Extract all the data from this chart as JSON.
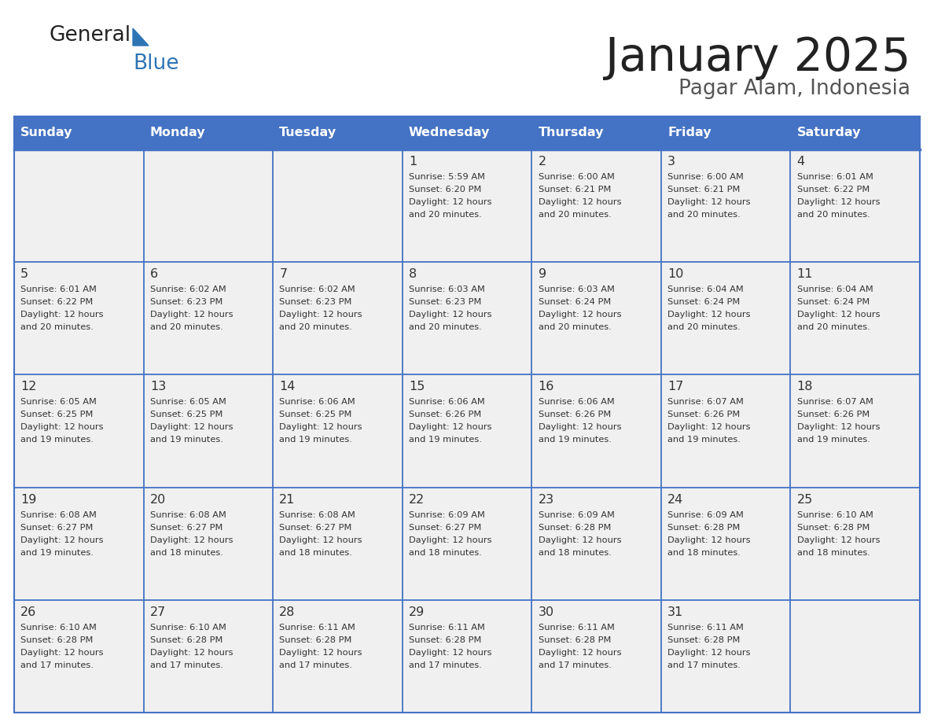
{
  "title": "January 2025",
  "subtitle": "Pagar Alam, Indonesia",
  "days_of_week": [
    "Sunday",
    "Monday",
    "Tuesday",
    "Wednesday",
    "Thursday",
    "Friday",
    "Saturday"
  ],
  "header_bg": "#4472C4",
  "header_text_color": "#FFFFFF",
  "cell_bg_light": "#F0F0F0",
  "cell_bg_white": "#FFFFFF",
  "cell_text_color": "#333333",
  "grid_line_color": "#4472C4",
  "title_color": "#222222",
  "subtitle_color": "#555555",
  "logo_general_color": "#222222",
  "logo_blue_color": "#2E75B6",
  "calendar_data": [
    [
      null,
      null,
      null,
      {
        "day": 1,
        "sunrise": "5:59 AM",
        "sunset": "6:20 PM",
        "daylight_line1": "Daylight: 12 hours",
        "daylight_line2": "and 20 minutes."
      },
      {
        "day": 2,
        "sunrise": "6:00 AM",
        "sunset": "6:21 PM",
        "daylight_line1": "Daylight: 12 hours",
        "daylight_line2": "and 20 minutes."
      },
      {
        "day": 3,
        "sunrise": "6:00 AM",
        "sunset": "6:21 PM",
        "daylight_line1": "Daylight: 12 hours",
        "daylight_line2": "and 20 minutes."
      },
      {
        "day": 4,
        "sunrise": "6:01 AM",
        "sunset": "6:22 PM",
        "daylight_line1": "Daylight: 12 hours",
        "daylight_line2": "and 20 minutes."
      }
    ],
    [
      {
        "day": 5,
        "sunrise": "6:01 AM",
        "sunset": "6:22 PM",
        "daylight_line1": "Daylight: 12 hours",
        "daylight_line2": "and 20 minutes."
      },
      {
        "day": 6,
        "sunrise": "6:02 AM",
        "sunset": "6:23 PM",
        "daylight_line1": "Daylight: 12 hours",
        "daylight_line2": "and 20 minutes."
      },
      {
        "day": 7,
        "sunrise": "6:02 AM",
        "sunset": "6:23 PM",
        "daylight_line1": "Daylight: 12 hours",
        "daylight_line2": "and 20 minutes."
      },
      {
        "day": 8,
        "sunrise": "6:03 AM",
        "sunset": "6:23 PM",
        "daylight_line1": "Daylight: 12 hours",
        "daylight_line2": "and 20 minutes."
      },
      {
        "day": 9,
        "sunrise": "6:03 AM",
        "sunset": "6:24 PM",
        "daylight_line1": "Daylight: 12 hours",
        "daylight_line2": "and 20 minutes."
      },
      {
        "day": 10,
        "sunrise": "6:04 AM",
        "sunset": "6:24 PM",
        "daylight_line1": "Daylight: 12 hours",
        "daylight_line2": "and 20 minutes."
      },
      {
        "day": 11,
        "sunrise": "6:04 AM",
        "sunset": "6:24 PM",
        "daylight_line1": "Daylight: 12 hours",
        "daylight_line2": "and 20 minutes."
      }
    ],
    [
      {
        "day": 12,
        "sunrise": "6:05 AM",
        "sunset": "6:25 PM",
        "daylight_line1": "Daylight: 12 hours",
        "daylight_line2": "and 19 minutes."
      },
      {
        "day": 13,
        "sunrise": "6:05 AM",
        "sunset": "6:25 PM",
        "daylight_line1": "Daylight: 12 hours",
        "daylight_line2": "and 19 minutes."
      },
      {
        "day": 14,
        "sunrise": "6:06 AM",
        "sunset": "6:25 PM",
        "daylight_line1": "Daylight: 12 hours",
        "daylight_line2": "and 19 minutes."
      },
      {
        "day": 15,
        "sunrise": "6:06 AM",
        "sunset": "6:26 PM",
        "daylight_line1": "Daylight: 12 hours",
        "daylight_line2": "and 19 minutes."
      },
      {
        "day": 16,
        "sunrise": "6:06 AM",
        "sunset": "6:26 PM",
        "daylight_line1": "Daylight: 12 hours",
        "daylight_line2": "and 19 minutes."
      },
      {
        "day": 17,
        "sunrise": "6:07 AM",
        "sunset": "6:26 PM",
        "daylight_line1": "Daylight: 12 hours",
        "daylight_line2": "and 19 minutes."
      },
      {
        "day": 18,
        "sunrise": "6:07 AM",
        "sunset": "6:26 PM",
        "daylight_line1": "Daylight: 12 hours",
        "daylight_line2": "and 19 minutes."
      }
    ],
    [
      {
        "day": 19,
        "sunrise": "6:08 AM",
        "sunset": "6:27 PM",
        "daylight_line1": "Daylight: 12 hours",
        "daylight_line2": "and 19 minutes."
      },
      {
        "day": 20,
        "sunrise": "6:08 AM",
        "sunset": "6:27 PM",
        "daylight_line1": "Daylight: 12 hours",
        "daylight_line2": "and 18 minutes."
      },
      {
        "day": 21,
        "sunrise": "6:08 AM",
        "sunset": "6:27 PM",
        "daylight_line1": "Daylight: 12 hours",
        "daylight_line2": "and 18 minutes."
      },
      {
        "day": 22,
        "sunrise": "6:09 AM",
        "sunset": "6:27 PM",
        "daylight_line1": "Daylight: 12 hours",
        "daylight_line2": "and 18 minutes."
      },
      {
        "day": 23,
        "sunrise": "6:09 AM",
        "sunset": "6:28 PM",
        "daylight_line1": "Daylight: 12 hours",
        "daylight_line2": "and 18 minutes."
      },
      {
        "day": 24,
        "sunrise": "6:09 AM",
        "sunset": "6:28 PM",
        "daylight_line1": "Daylight: 12 hours",
        "daylight_line2": "and 18 minutes."
      },
      {
        "day": 25,
        "sunrise": "6:10 AM",
        "sunset": "6:28 PM",
        "daylight_line1": "Daylight: 12 hours",
        "daylight_line2": "and 18 minutes."
      }
    ],
    [
      {
        "day": 26,
        "sunrise": "6:10 AM",
        "sunset": "6:28 PM",
        "daylight_line1": "Daylight: 12 hours",
        "daylight_line2": "and 17 minutes."
      },
      {
        "day": 27,
        "sunrise": "6:10 AM",
        "sunset": "6:28 PM",
        "daylight_line1": "Daylight: 12 hours",
        "daylight_line2": "and 17 minutes."
      },
      {
        "day": 28,
        "sunrise": "6:11 AM",
        "sunset": "6:28 PM",
        "daylight_line1": "Daylight: 12 hours",
        "daylight_line2": "and 17 minutes."
      },
      {
        "day": 29,
        "sunrise": "6:11 AM",
        "sunset": "6:28 PM",
        "daylight_line1": "Daylight: 12 hours",
        "daylight_line2": "and 17 minutes."
      },
      {
        "day": 30,
        "sunrise": "6:11 AM",
        "sunset": "6:28 PM",
        "daylight_line1": "Daylight: 12 hours",
        "daylight_line2": "and 17 minutes."
      },
      {
        "day": 31,
        "sunrise": "6:11 AM",
        "sunset": "6:28 PM",
        "daylight_line1": "Daylight: 12 hours",
        "daylight_line2": "and 17 minutes."
      },
      null
    ]
  ]
}
